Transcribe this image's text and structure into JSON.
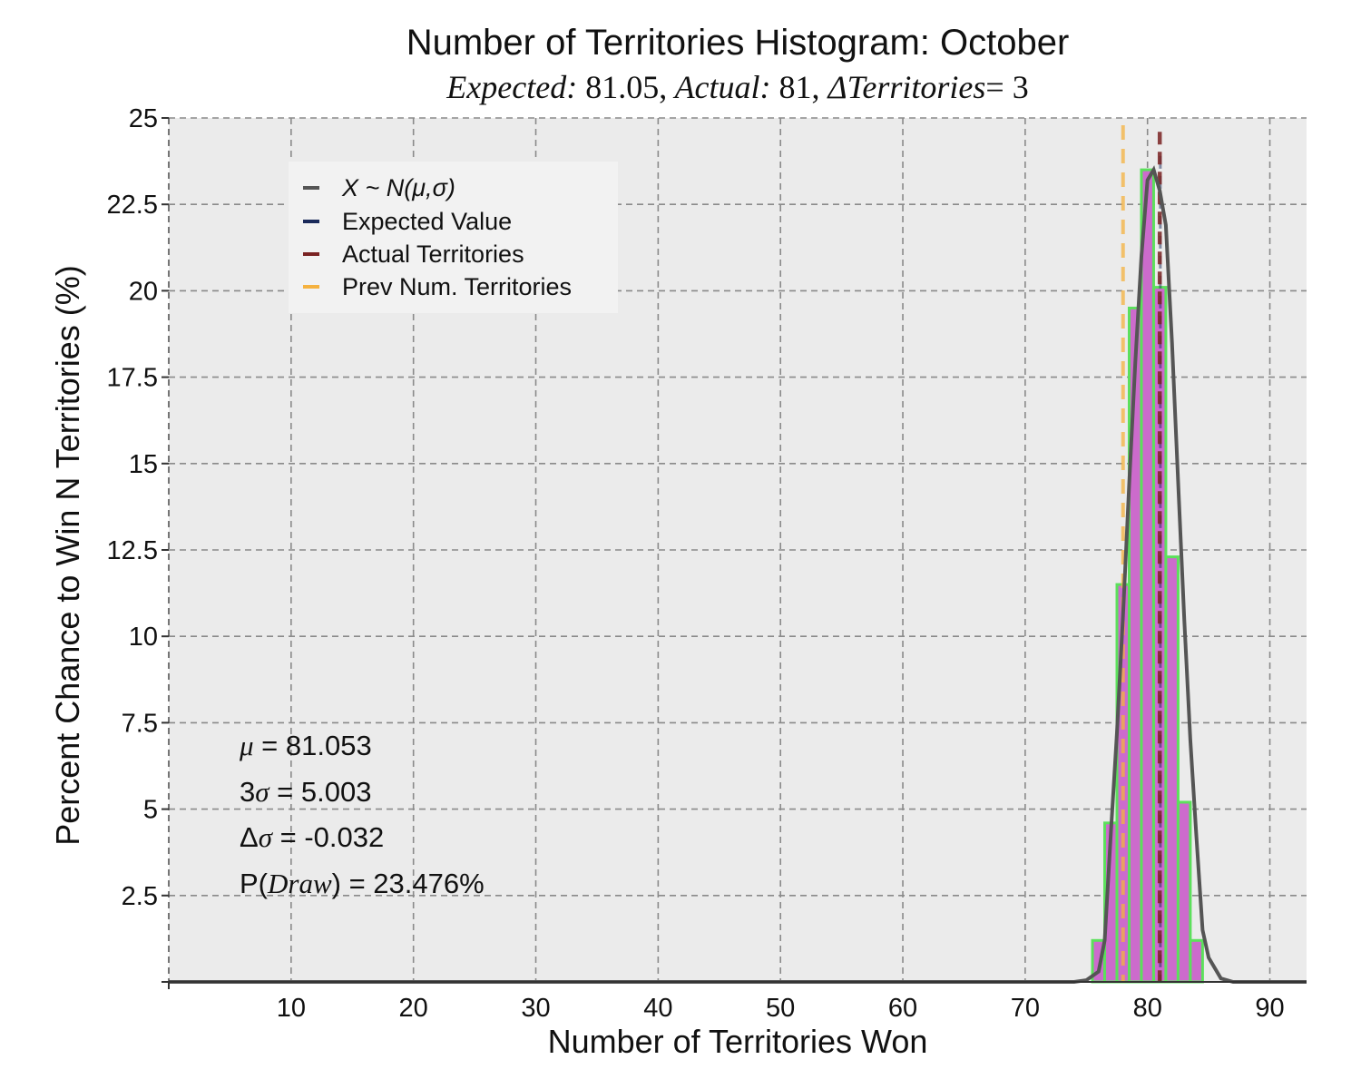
{
  "chart_data": {
    "type": "bar",
    "title": "Number of Territories Histogram: October",
    "subtitle": {
      "expected_label": "Expected:",
      "expected_value": "81.05",
      "actual_label": "Actual:",
      "actual_value": "81",
      "delta_label": "ΔTerritories",
      "delta_value": "= 3"
    },
    "xlabel": "Number of Territories Won",
    "ylabel": "Percent Chance to Win N Territories (%)",
    "xlim": [
      0,
      93
    ],
    "ylim": [
      0,
      25
    ],
    "xticks": [
      10,
      20,
      30,
      40,
      50,
      60,
      70,
      80,
      90
    ],
    "xtick_labels": [
      "10",
      "20",
      "30",
      "40",
      "50",
      "60",
      "70",
      "80",
      "90"
    ],
    "yticks": [
      2.5,
      5,
      7.5,
      10,
      12.5,
      15,
      17.5,
      20,
      22.5,
      25
    ],
    "ytick_labels": [
      "2.5",
      "5",
      "7.5",
      "10",
      "12.5",
      "15",
      "17.5",
      "20",
      "22.5",
      "25"
    ],
    "grid": true,
    "legend_position": "upper-left",
    "bins": [
      {
        "x": 76,
        "value": 1.2
      },
      {
        "x": 77,
        "value": 4.6
      },
      {
        "x": 78,
        "value": 11.5
      },
      {
        "x": 79,
        "value": 19.5
      },
      {
        "x": 80,
        "value": 23.5
      },
      {
        "x": 81,
        "value": 20.1
      },
      {
        "x": 82,
        "value": 12.3
      },
      {
        "x": 83,
        "value": 5.2
      },
      {
        "x": 84,
        "value": 1.2
      }
    ],
    "normal_curve": {
      "name": "X ~ N(μ,σ)",
      "x": [
        0,
        74,
        75,
        76,
        76.5,
        77,
        77.5,
        78,
        78.5,
        79,
        79.5,
        80,
        80.5,
        81,
        81.5,
        82,
        82.5,
        83,
        83.5,
        84,
        84.5,
        85,
        86,
        87,
        93
      ],
      "y": [
        0,
        0,
        0.05,
        0.3,
        1.2,
        4.3,
        7.2,
        10.6,
        14.4,
        17.9,
        21.0,
        23.2,
        23.5,
        22.9,
        21.9,
        18.5,
        14.5,
        10.5,
        7.0,
        4.2,
        1.5,
        0.7,
        0.1,
        0,
        0
      ]
    },
    "vlines": [
      {
        "name": "Expected Value",
        "x": 81.05,
        "color": "#1a2a5a"
      },
      {
        "name": "Actual Territories",
        "x": 81,
        "color": "#7a2323"
      },
      {
        "name": "Prev Num. Territories",
        "x": 78,
        "color": "#f5b240"
      }
    ],
    "legend": [
      {
        "label": "X ~ N(μ,σ)",
        "color": "#555555"
      },
      {
        "label": "Expected Value",
        "color": "#1a2a5a"
      },
      {
        "label": "Actual Territories",
        "color": "#7a2323"
      },
      {
        "label": "Prev Num. Territories",
        "color": "#f5b240"
      }
    ],
    "stats": [
      {
        "prefix": "",
        "math": "μ",
        "suffix": " = 81.053"
      },
      {
        "prefix": "3",
        "math": "σ",
        "suffix": " = 5.003"
      },
      {
        "prefix": "Δ",
        "math": "σ",
        "suffix": " = -0.032"
      },
      {
        "prefix": "P(",
        "math": "Draw",
        "suffix": ") = 23.476%"
      }
    ],
    "colors": {
      "bar_fill": "#cc6bcc",
      "bar_edge": "#5ce05c",
      "curve": "#555555",
      "plot_bg": "#ebebeb",
      "grid": "#8a8a8a",
      "legend_bg": "#f2f2f2"
    }
  }
}
